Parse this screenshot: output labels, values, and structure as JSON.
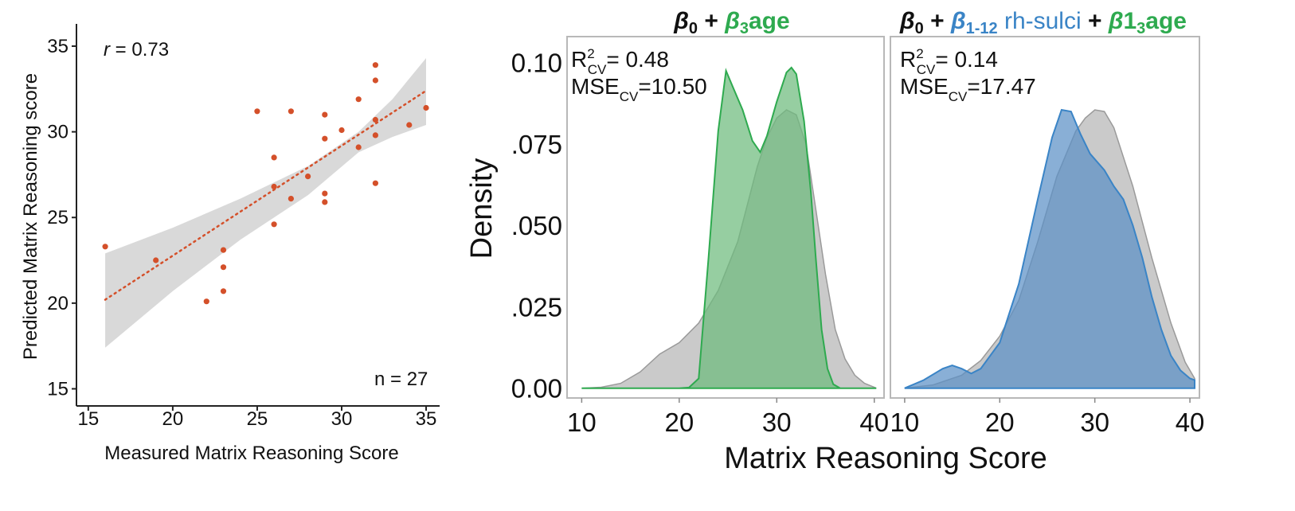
{
  "chart_data": [
    {
      "type": "scatter",
      "xlabel": "Measured Matrix Reasoning Score",
      "ylabel": "Predicted Matrix Reasoning score",
      "xlim": [
        14.3,
        35.8
      ],
      "ylim": [
        14,
        36.3
      ],
      "xticks": [
        15,
        20,
        25,
        30,
        35
      ],
      "yticks": [
        15,
        20,
        25,
        30,
        35
      ],
      "r_prefix": "r",
      "r_value": " = 0.73",
      "n_label": "n = 27",
      "point_color": "#d4502a",
      "ribbon_color": "#d9d9d9",
      "points": [
        {
          "x": 16,
          "y": 23.3
        },
        {
          "x": 19,
          "y": 22.5
        },
        {
          "x": 22,
          "y": 20.1
        },
        {
          "x": 23,
          "y": 23.1
        },
        {
          "x": 23,
          "y": 22.1
        },
        {
          "x": 23,
          "y": 20.7
        },
        {
          "x": 25,
          "y": 31.2
        },
        {
          "x": 26,
          "y": 28.5
        },
        {
          "x": 26,
          "y": 26.8
        },
        {
          "x": 26,
          "y": 24.6
        },
        {
          "x": 27,
          "y": 31.2
        },
        {
          "x": 27,
          "y": 26.1
        },
        {
          "x": 28,
          "y": 27.4
        },
        {
          "x": 29,
          "y": 31.0
        },
        {
          "x": 29,
          "y": 29.6
        },
        {
          "x": 29,
          "y": 26.4
        },
        {
          "x": 29,
          "y": 25.9
        },
        {
          "x": 30,
          "y": 30.1
        },
        {
          "x": 31,
          "y": 31.9
        },
        {
          "x": 31,
          "y": 29.1
        },
        {
          "x": 32,
          "y": 33.9
        },
        {
          "x": 32,
          "y": 33.0
        },
        {
          "x": 32,
          "y": 30.7
        },
        {
          "x": 32,
          "y": 29.8
        },
        {
          "x": 32,
          "y": 27.0
        },
        {
          "x": 34,
          "y": 30.4
        },
        {
          "x": 35,
          "y": 31.4
        }
      ],
      "fit": {
        "x0": 16,
        "y0": 20.2,
        "x1": 35,
        "y1": 32.4
      },
      "ribbon_upper": [
        [
          16,
          22.9
        ],
        [
          20,
          24.4
        ],
        [
          24,
          26.1
        ],
        [
          28,
          28.0
        ],
        [
          31,
          30.0
        ],
        [
          33,
          31.9
        ],
        [
          35,
          34.3
        ]
      ],
      "ribbon_lower": [
        [
          35,
          30.4
        ],
        [
          33,
          29.7
        ],
        [
          31,
          28.8
        ],
        [
          28,
          26.3
        ],
        [
          24,
          23.7
        ],
        [
          20,
          20.7
        ],
        [
          16,
          17.4
        ]
      ]
    },
    {
      "type": "area",
      "title_prefix": "β",
      "title_sub0": "0",
      "title_plus": " + ",
      "title_beta": "β",
      "title_sub3": "3",
      "title_age": "age",
      "r2_prefix": "R",
      "r2_sup": "2",
      "r2_sub": "CV",
      "r2_value": "= 0.48",
      "mse_prefix": "MSE",
      "mse_sub": "CV",
      "mse_value": "=10.50",
      "ylabel": "Density",
      "xticks": [
        10,
        20,
        30,
        40
      ],
      "ytick_labels": [
        "0.00",
        ".025",
        ".050",
        ".075",
        "0.10"
      ],
      "ytick_values": [
        0,
        0.025,
        0.05,
        0.075,
        0.1
      ],
      "xlim": [
        8.5,
        41
      ],
      "ylim": [
        -0.003,
        0.108
      ],
      "accent": "#2eaa4f",
      "fill": "#6dbb7d",
      "gray_series": [
        [
          10,
          0
        ],
        [
          12,
          0.0003
        ],
        [
          14,
          0.0015
        ],
        [
          16,
          0.005
        ],
        [
          18,
          0.0105
        ],
        [
          20,
          0.014
        ],
        [
          22,
          0.02
        ],
        [
          24,
          0.03
        ],
        [
          26,
          0.045
        ],
        [
          28,
          0.068
        ],
        [
          29,
          0.077
        ],
        [
          30,
          0.083
        ],
        [
          31,
          0.0855
        ],
        [
          32,
          0.084
        ],
        [
          33,
          0.075
        ],
        [
          34,
          0.055
        ],
        [
          35,
          0.035
        ],
        [
          36,
          0.018
        ],
        [
          37,
          0.009
        ],
        [
          38,
          0.004
        ],
        [
          39,
          0.0015
        ],
        [
          40,
          0.0003
        ],
        [
          40.2,
          0
        ]
      ],
      "green_series": [
        [
          10,
          0
        ],
        [
          20,
          0
        ],
        [
          21,
          0.0002
        ],
        [
          22,
          0.003
        ],
        [
          23,
          0.04
        ],
        [
          24,
          0.079
        ],
        [
          24.8,
          0.0975
        ],
        [
          25.5,
          0.0925
        ],
        [
          26.5,
          0.0855
        ],
        [
          27.5,
          0.076
        ],
        [
          28.3,
          0.0725
        ],
        [
          29,
          0.0775
        ],
        [
          30,
          0.088
        ],
        [
          31,
          0.097
        ],
        [
          31.5,
          0.0985
        ],
        [
          32,
          0.0965
        ],
        [
          32.8,
          0.082
        ],
        [
          33.5,
          0.06
        ],
        [
          34,
          0.04
        ],
        [
          34.6,
          0.018
        ],
        [
          35.2,
          0.006
        ],
        [
          35.8,
          0.0012
        ],
        [
          36.5,
          0
        ],
        [
          40.2,
          0
        ]
      ]
    },
    {
      "type": "area",
      "title_prefix": "β",
      "title_sub0": "0",
      "title_plus": " + ",
      "title_beta": "β",
      "title_sub112": "1-12",
      "title_rh": " rh-sulci",
      "title_plus2": " + ",
      "title_beta2": "β",
      "title_13": "1",
      "title_sub3": "3",
      "title_age": "age",
      "r2_prefix": "R",
      "r2_sup": "2",
      "r2_sub": "CV",
      "r2_value": "= 0.14",
      "mse_prefix": "MSE",
      "mse_sub": "CV",
      "mse_value": "=17.47",
      "xlabel": "Matrix Reasoning Score",
      "xticks": [
        10,
        20,
        30,
        40
      ],
      "xlim": [
        8.5,
        41
      ],
      "accent_blue": "#3a84c6",
      "fill": "#5b90c6",
      "gray_series": [
        [
          10,
          0
        ],
        [
          13,
          0.001
        ],
        [
          16,
          0.004
        ],
        [
          18,
          0.0085
        ],
        [
          20,
          0.016
        ],
        [
          22,
          0.027
        ],
        [
          24,
          0.045
        ],
        [
          26,
          0.065
        ],
        [
          28,
          0.079
        ],
        [
          29,
          0.083
        ],
        [
          30,
          0.0855
        ],
        [
          31,
          0.085
        ],
        [
          32,
          0.08
        ],
        [
          34,
          0.062
        ],
        [
          36,
          0.04
        ],
        [
          38,
          0.02
        ],
        [
          39.5,
          0.008
        ],
        [
          40.5,
          0.003
        ],
        [
          40.5,
          0
        ]
      ],
      "blue_series": [
        [
          10,
          0
        ],
        [
          12,
          0.0025
        ],
        [
          14,
          0.006
        ],
        [
          15,
          0.007
        ],
        [
          16,
          0.006
        ],
        [
          17,
          0.0045
        ],
        [
          18,
          0.006
        ],
        [
          20,
          0.014
        ],
        [
          22,
          0.032
        ],
        [
          24,
          0.058
        ],
        [
          25.5,
          0.077
        ],
        [
          26.5,
          0.0855
        ],
        [
          27.5,
          0.085
        ],
        [
          28.5,
          0.078
        ],
        [
          29.5,
          0.072
        ],
        [
          31,
          0.067
        ],
        [
          32,
          0.062
        ],
        [
          33,
          0.058
        ],
        [
          34,
          0.05
        ],
        [
          35,
          0.04
        ],
        [
          36,
          0.028
        ],
        [
          37,
          0.018
        ],
        [
          38,
          0.01
        ],
        [
          39,
          0.0055
        ],
        [
          40,
          0.003
        ],
        [
          40.5,
          0.0025
        ],
        [
          40.5,
          0
        ]
      ]
    }
  ]
}
